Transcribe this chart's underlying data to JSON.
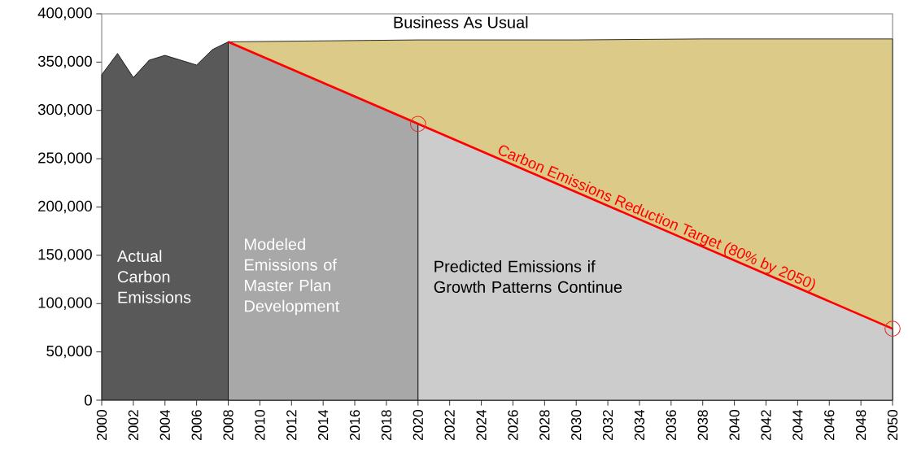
{
  "chart_data": {
    "type": "area",
    "xlim": [
      2000,
      2050
    ],
    "ylim": [
      0,
      400000
    ],
    "xticks": [
      2000,
      2002,
      2004,
      2006,
      2008,
      2010,
      2012,
      2014,
      2016,
      2018,
      2020,
      2022,
      2024,
      2026,
      2028,
      2030,
      2032,
      2034,
      2036,
      2038,
      2040,
      2042,
      2044,
      2046,
      2048,
      2050
    ],
    "yticks": [
      {
        "value": 0,
        "label": "0"
      },
      {
        "value": 50000,
        "label": "50,000"
      },
      {
        "value": 100000,
        "label": "100,000"
      },
      {
        "value": 150000,
        "label": "150,000"
      },
      {
        "value": 200000,
        "label": "200,000"
      },
      {
        "value": 250000,
        "label": "250,000"
      },
      {
        "value": 300000,
        "label": "300,000"
      },
      {
        "value": 350000,
        "label": "350,000"
      },
      {
        "value": 400000,
        "label": "400,000"
      }
    ],
    "series": [
      {
        "name": "Business As Usual",
        "color": "#dccb88",
        "x": [
          2008,
          2020,
          2030,
          2038,
          2050
        ],
        "values": [
          371000,
          373000,
          373000,
          374000,
          374000
        ]
      },
      {
        "name": "Actual Carbon Emissions",
        "color": "#595959",
        "x": [
          2000,
          2001,
          2002,
          2003,
          2004,
          2005,
          2006,
          2007,
          2008
        ],
        "values": [
          337000,
          359000,
          334000,
          352000,
          357000,
          352000,
          347000,
          363000,
          371000
        ]
      },
      {
        "name": "Modeled Emissions of Master Plan Development",
        "color": "#a8a8a8",
        "x": [
          2008,
          2020
        ],
        "values": [
          371000,
          286000
        ]
      },
      {
        "name": "Predicted Emissions if Growth Patterns Continue",
        "color": "#cccccc",
        "x": [
          2020,
          2050
        ],
        "values": [
          286000,
          74000
        ]
      },
      {
        "name": "Carbon Emissions Reduction Target (80% by 2050)",
        "type": "line",
        "color": "#ff0000",
        "x": [
          2008,
          2050
        ],
        "values": [
          371000,
          74000
        ]
      },
      {
        "type": "scatter",
        "color": "#e03030",
        "marker": "circle",
        "x": [
          2020,
          2050
        ],
        "values": [
          286000,
          74000
        ]
      }
    ]
  }
}
